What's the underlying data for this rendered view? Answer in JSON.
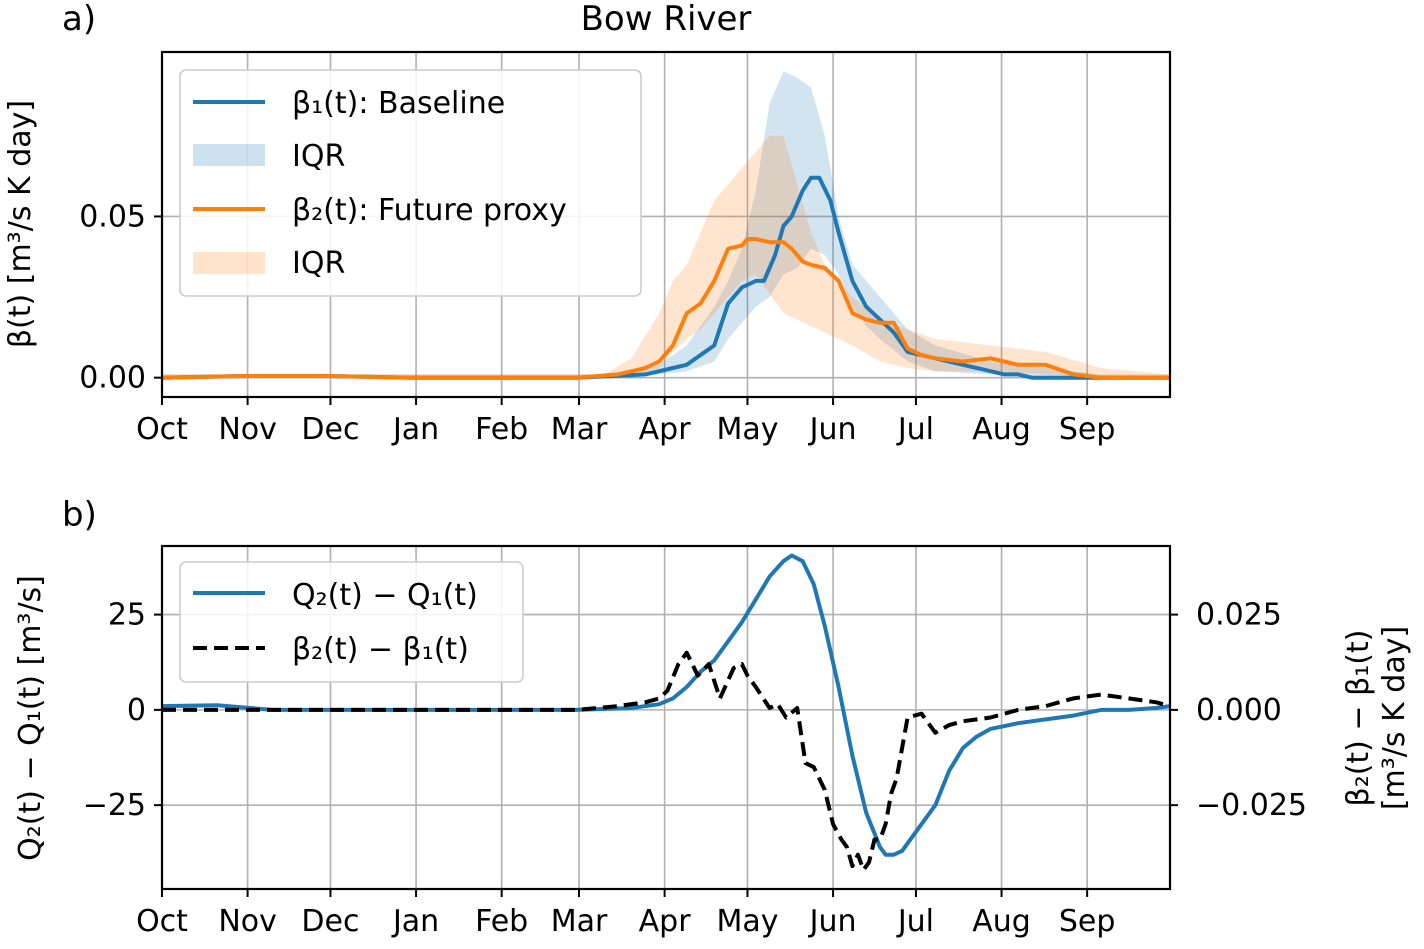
{
  "figure": {
    "title": "Bow River"
  },
  "chart_data": [
    {
      "panel_label": "a)",
      "type": "line",
      "title": "Bow River",
      "ylabel": "β(t) [m³/s K day]",
      "x_ticks": [
        "Oct",
        "Nov",
        "Dec",
        "Jan",
        "Feb",
        "Mar",
        "Apr",
        "May",
        "Jun",
        "Jul",
        "Aug",
        "Sep"
      ],
      "x_tick_days": [
        0,
        31,
        61,
        92,
        123,
        151,
        182,
        212,
        243,
        273,
        304,
        335
      ],
      "xlim": [
        0,
        365
      ],
      "ylim": [
        -0.006,
        0.101
      ],
      "y_ticks": [
        0.0,
        0.05
      ],
      "y_tick_labels": [
        "0.00",
        "0.05"
      ],
      "grid": true,
      "legend_position": "upper-left",
      "series": [
        {
          "name": "β₁(t): Baseline",
          "kind": "line",
          "color": "#1f77b4",
          "x": [
            0,
            30,
            60,
            90,
            120,
            150,
            175,
            185,
            190,
            200,
            205,
            210,
            215,
            218,
            222,
            225,
            228,
            232,
            235,
            238,
            242,
            245,
            250,
            255,
            260,
            265,
            270,
            280,
            285,
            290,
            300,
            305,
            310,
            315,
            320,
            330,
            340,
            365
          ],
          "y": [
            0,
            0.0005,
            0.0005,
            0,
            0,
            0,
            0.001,
            0.003,
            0.004,
            0.01,
            0.023,
            0.028,
            0.03,
            0.03,
            0.038,
            0.047,
            0.05,
            0.058,
            0.062,
            0.062,
            0.055,
            0.045,
            0.03,
            0.022,
            0.018,
            0.014,
            0.008,
            0.006,
            0.005,
            0.004,
            0.002,
            0.001,
            0.001,
            0,
            0,
            0,
            0,
            0
          ]
        },
        {
          "name": "IQR",
          "kind": "band",
          "color": "#1f77b4",
          "x": [
            0,
            170,
            180,
            190,
            200,
            205,
            210,
            215,
            220,
            225,
            230,
            235,
            240,
            245,
            250,
            255,
            260,
            270,
            280,
            300,
            320,
            340,
            365
          ],
          "lower": [
            0,
            0,
            0.001,
            0.002,
            0.005,
            0.012,
            0.017,
            0.022,
            0.025,
            0.032,
            0.034,
            0.04,
            0.038,
            0.032,
            0.022,
            0.016,
            0.012,
            0.005,
            0.002,
            0.001,
            0,
            0,
            0
          ],
          "upper": [
            0.001,
            0.001,
            0.004,
            0.01,
            0.022,
            0.03,
            0.04,
            0.058,
            0.085,
            0.095,
            0.093,
            0.09,
            0.075,
            0.05,
            0.035,
            0.03,
            0.025,
            0.015,
            0.01,
            0.005,
            0.003,
            0.001,
            0.001
          ]
        },
        {
          "name": "β₂(t): Future proxy",
          "kind": "line",
          "color": "#ff7f0e",
          "x": [
            0,
            30,
            60,
            90,
            120,
            150,
            165,
            175,
            180,
            185,
            190,
            195,
            200,
            205,
            210,
            212,
            215,
            220,
            225,
            228,
            232,
            235,
            240,
            245,
            250,
            255,
            260,
            265,
            270,
            275,
            280,
            290,
            300,
            305,
            310,
            320,
            330,
            340,
            365
          ],
          "y": [
            0,
            0.0005,
            0.0005,
            0,
            0,
            0,
            0.001,
            0.003,
            0.005,
            0.01,
            0.02,
            0.023,
            0.03,
            0.04,
            0.041,
            0.043,
            0.043,
            0.042,
            0.042,
            0.04,
            0.036,
            0.035,
            0.034,
            0.03,
            0.02,
            0.018,
            0.017,
            0.017,
            0.009,
            0.007,
            0.006,
            0.005,
            0.006,
            0.005,
            0.004,
            0.004,
            0.001,
            0,
            0
          ]
        },
        {
          "name": "IQR",
          "kind": "band",
          "color": "#ff7f0e",
          "x": [
            0,
            160,
            170,
            180,
            185,
            190,
            195,
            200,
            205,
            210,
            215,
            220,
            225,
            230,
            235,
            240,
            245,
            250,
            260,
            270,
            280,
            300,
            320,
            340,
            365
          ],
          "lower": [
            0,
            0,
            0.001,
            0.003,
            0.008,
            0.012,
            0.015,
            0.02,
            0.025,
            0.03,
            0.032,
            0.026,
            0.02,
            0.018,
            0.016,
            0.014,
            0.012,
            0.01,
            0.005,
            0.003,
            0.002,
            0.002,
            0.001,
            0,
            0
          ],
          "upper": [
            0.001,
            0.001,
            0.006,
            0.02,
            0.03,
            0.035,
            0.045,
            0.055,
            0.06,
            0.065,
            0.07,
            0.075,
            0.075,
            0.06,
            0.045,
            0.035,
            0.03,
            0.025,
            0.018,
            0.015,
            0.012,
            0.01,
            0.008,
            0.003,
            0.001
          ]
        }
      ]
    },
    {
      "panel_label": "b)",
      "type": "line",
      "ylabel": "Q₂(t) − Q₁(t) [m³/s]",
      "ylabel_right": [
        "β₂(t) − β₁(t)",
        "[m³/s K day]"
      ],
      "x_ticks": [
        "Oct",
        "Nov",
        "Dec",
        "Jan",
        "Feb",
        "Mar",
        "Apr",
        "May",
        "Jun",
        "Jul",
        "Aug",
        "Sep"
      ],
      "x_tick_days": [
        0,
        31,
        61,
        92,
        123,
        151,
        182,
        212,
        243,
        273,
        304,
        335
      ],
      "xlim": [
        0,
        365
      ],
      "ylim": [
        -47,
        43
      ],
      "ylim_right": [
        -0.047,
        0.043
      ],
      "y_ticks": [
        -25,
        0,
        25
      ],
      "y_tick_labels": [
        "−25",
        "0",
        "25"
      ],
      "y_ticks_right": [
        -0.025,
        0.0,
        0.025
      ],
      "y_tick_labels_right": [
        "−0.025",
        "0.000",
        "0.025"
      ],
      "grid": true,
      "legend_position": "upper-left",
      "series": [
        {
          "name": "Q₂(t) − Q₁(t)",
          "axis": "left",
          "style": "solid",
          "color": "#1f77b4",
          "x": [
            0,
            20,
            40,
            60,
            90,
            120,
            150,
            170,
            180,
            185,
            190,
            195,
            200,
            205,
            210,
            215,
            220,
            225,
            228,
            232,
            236,
            240,
            245,
            250,
            255,
            260,
            262,
            265,
            268,
            270,
            275,
            280,
            285,
            290,
            295,
            300,
            310,
            320,
            330,
            340,
            350,
            360,
            365
          ],
          "y": [
            1,
            1.2,
            0,
            0,
            0,
            0,
            0,
            0.5,
            1.5,
            3,
            6,
            10,
            13,
            18,
            23,
            29,
            35,
            39,
            40.5,
            39,
            33,
            22,
            6,
            -12,
            -27,
            -36,
            -38,
            -38,
            -37,
            -35,
            -30,
            -25,
            -16,
            -10,
            -7,
            -5,
            -3.5,
            -2.5,
            -1.5,
            0,
            0,
            0.5,
            1
          ]
        },
        {
          "name": "β₂(t) − β₁(t)",
          "axis": "right",
          "style": "dashed",
          "color": "#000000",
          "x": [
            0,
            30,
            60,
            90,
            120,
            150,
            165,
            175,
            180,
            183,
            187,
            190,
            194,
            198,
            202,
            207,
            210,
            212,
            215,
            220,
            223,
            226,
            230,
            233,
            236,
            240,
            243,
            246,
            248,
            250,
            252,
            254,
            256,
            258,
            260,
            262,
            264,
            266,
            268,
            270,
            275,
            280,
            285,
            290,
            300,
            305,
            310,
            320,
            330,
            340,
            350,
            360,
            365
          ],
          "y": [
            0,
            0,
            0,
            0,
            0,
            0,
            0.001,
            0.002,
            0.003,
            0.005,
            0.012,
            0.015,
            0.009,
            0.012,
            0.003,
            0.011,
            0.012,
            0.009,
            0.006,
            0.0005,
            0.0015,
            -0.002,
            0.0005,
            -0.014,
            -0.015,
            -0.021,
            -0.03,
            -0.034,
            -0.036,
            -0.041,
            -0.038,
            -0.042,
            -0.04,
            -0.034,
            -0.034,
            -0.03,
            -0.022,
            -0.018,
            -0.01,
            -0.002,
            -0.001,
            -0.006,
            -0.004,
            -0.003,
            -0.002,
            -0.001,
            0.0,
            0.001,
            0.003,
            0.004,
            0.003,
            0.002,
            0.001
          ]
        }
      ]
    }
  ]
}
